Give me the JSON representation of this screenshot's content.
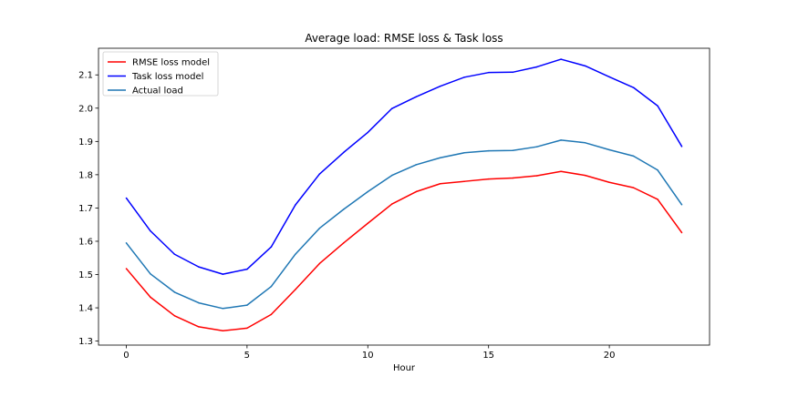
{
  "chart_data": {
    "type": "line",
    "title": "Average load: RMSE loss & Task loss",
    "xlabel": "Hour",
    "ylabel": "",
    "xlim": [
      -1.15,
      24.15
    ],
    "ylim": [
      1.288,
      2.18
    ],
    "xticks": [
      0,
      5,
      10,
      15,
      20
    ],
    "yticks": [
      1.3,
      1.4,
      1.5,
      1.6,
      1.7,
      1.8,
      1.9,
      2.0,
      2.1
    ],
    "ytick_labels": [
      "1.3",
      "1.4",
      "1.5",
      "1.6",
      "1.7",
      "1.8",
      "1.9",
      "2.0",
      "2.1"
    ],
    "grid": false,
    "legend_position": "top-left",
    "x": [
      0,
      1,
      2,
      3,
      4,
      5,
      6,
      7,
      8,
      9,
      10,
      11,
      12,
      13,
      14,
      15,
      16,
      17,
      18,
      19,
      20,
      21,
      22,
      23
    ],
    "series": [
      {
        "name": "RMSE loss model",
        "color": "#ff0000",
        "values": [
          1.518,
          1.432,
          1.376,
          1.343,
          1.331,
          1.339,
          1.38,
          1.455,
          1.533,
          1.595,
          1.654,
          1.712,
          1.749,
          1.773,
          1.78,
          1.787,
          1.79,
          1.797,
          1.81,
          1.798,
          1.777,
          1.761,
          1.726,
          1.626
        ]
      },
      {
        "name": "Task loss model",
        "color": "#0000ff",
        "values": [
          1.73,
          1.631,
          1.561,
          1.523,
          1.501,
          1.516,
          1.583,
          1.709,
          1.802,
          1.867,
          1.927,
          1.999,
          2.034,
          2.066,
          2.093,
          2.107,
          2.108,
          2.124,
          2.147,
          2.127,
          2.094,
          2.062,
          2.007,
          1.885
        ]
      },
      {
        "name": "Actual load",
        "color": "#1f77b4",
        "values": [
          1.595,
          1.502,
          1.447,
          1.415,
          1.398,
          1.408,
          1.464,
          1.561,
          1.639,
          1.696,
          1.749,
          1.798,
          1.83,
          1.851,
          1.866,
          1.872,
          1.873,
          1.884,
          1.904,
          1.896,
          1.875,
          1.856,
          1.814,
          1.71
        ]
      }
    ]
  }
}
